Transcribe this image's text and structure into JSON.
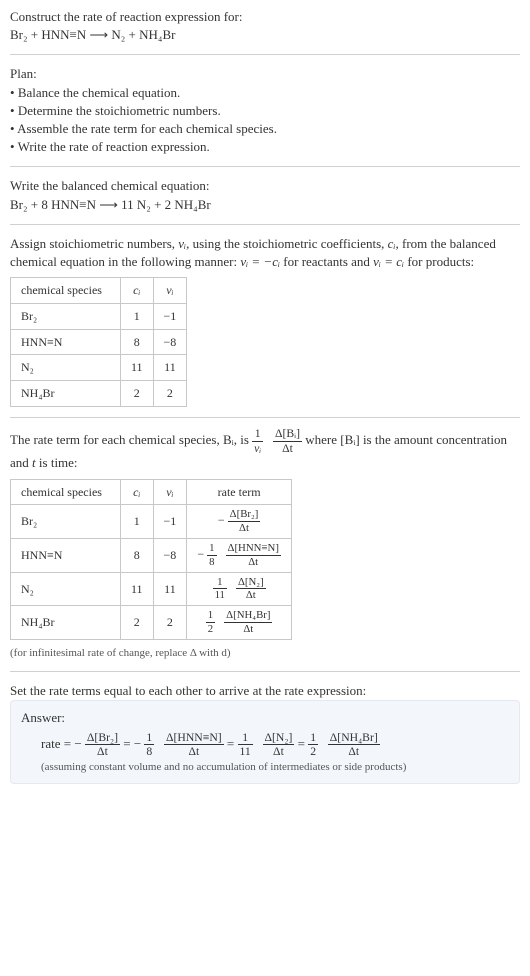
{
  "colors": {
    "divider": "#d0d0d0",
    "border": "#c8c8c8",
    "answer_bg": "#f3f6fa",
    "answer_border": "#e5e9ee",
    "text": "#333333"
  },
  "intro": {
    "heading": "Construct the rate of reaction expression for:",
    "equation": "Br₂ + HNN≡N  ⟶  N₂ + NH₄Br"
  },
  "plan": {
    "heading": "Plan:",
    "items": [
      "Balance the chemical equation.",
      "Determine the stoichiometric numbers.",
      "Assemble the rate term for each chemical species.",
      "Write the rate of reaction expression."
    ]
  },
  "balanced": {
    "heading": "Write the balanced chemical equation:",
    "equation": "Br₂ + 8 HNN≡N  ⟶  11 N₂ + 2 NH₄Br"
  },
  "stoich": {
    "text_a": "Assign stoichiometric numbers, ",
    "nu_i": "νᵢ",
    "text_b": ", using the stoichiometric coefficients, ",
    "c_i": "cᵢ",
    "text_c": ", from the balanced chemical equation in the following manner: ",
    "rel1": "νᵢ = −cᵢ",
    "text_d": " for reactants and ",
    "rel2": "νᵢ = cᵢ",
    "text_e": " for products:",
    "table": {
      "headers": [
        "chemical species",
        "cᵢ",
        "νᵢ"
      ],
      "rows": [
        {
          "species": "Br₂",
          "c": "1",
          "nu": "−1"
        },
        {
          "species": "HNN≡N",
          "c": "8",
          "nu": "−8"
        },
        {
          "species": "N₂",
          "c": "11",
          "nu": "11"
        },
        {
          "species": "NH₄Br",
          "c": "2",
          "nu": "2"
        }
      ]
    }
  },
  "rateterm": {
    "pre": "The rate term for each chemical species, Bᵢ, is ",
    "mid": " where [Bᵢ] is the amount concentration and ",
    "tvar": "t",
    "post": " is time:",
    "frac1": {
      "num": "1",
      "den": "νᵢ"
    },
    "frac2": {
      "num": "Δ[Bᵢ]",
      "den": "Δt"
    },
    "table": {
      "headers": [
        "chemical species",
        "cᵢ",
        "νᵢ",
        "rate term"
      ],
      "rows": [
        {
          "species": "Br₂",
          "c": "1",
          "nu": "−1",
          "sign": "−",
          "coef_num": "",
          "coef_den": "",
          "dnum": "Δ[Br₂]",
          "dden": "Δt"
        },
        {
          "species": "HNN≡N",
          "c": "8",
          "nu": "−8",
          "sign": "−",
          "coef_num": "1",
          "coef_den": "8",
          "dnum": "Δ[HNN≡N]",
          "dden": "Δt"
        },
        {
          "species": "N₂",
          "c": "11",
          "nu": "11",
          "sign": "",
          "coef_num": "1",
          "coef_den": "11",
          "dnum": "Δ[N₂]",
          "dden": "Δt"
        },
        {
          "species": "NH₄Br",
          "c": "2",
          "nu": "2",
          "sign": "",
          "coef_num": "1",
          "coef_den": "2",
          "dnum": "Δ[NH₄Br]",
          "dden": "Δt"
        }
      ]
    },
    "note": "(for infinitesimal rate of change, replace Δ with d)"
  },
  "final": {
    "heading": "Set the rate terms equal to each other to arrive at the rate expression:",
    "answer_label": "Answer:",
    "rate_word": "rate = ",
    "terms": [
      {
        "sign": "−",
        "coef_num": "",
        "coef_den": "",
        "dnum": "Δ[Br₂]",
        "dden": "Δt"
      },
      {
        "sign": "−",
        "coef_num": "1",
        "coef_den": "8",
        "dnum": "Δ[HNN≡N]",
        "dden": "Δt"
      },
      {
        "sign": "",
        "coef_num": "1",
        "coef_den": "11",
        "dnum": "Δ[N₂]",
        "dden": "Δt"
      },
      {
        "sign": "",
        "coef_num": "1",
        "coef_den": "2",
        "dnum": "Δ[NH₄Br]",
        "dden": "Δt"
      }
    ],
    "eq": " = ",
    "assumption": "(assuming constant volume and no accumulation of intermediates or side products)"
  }
}
